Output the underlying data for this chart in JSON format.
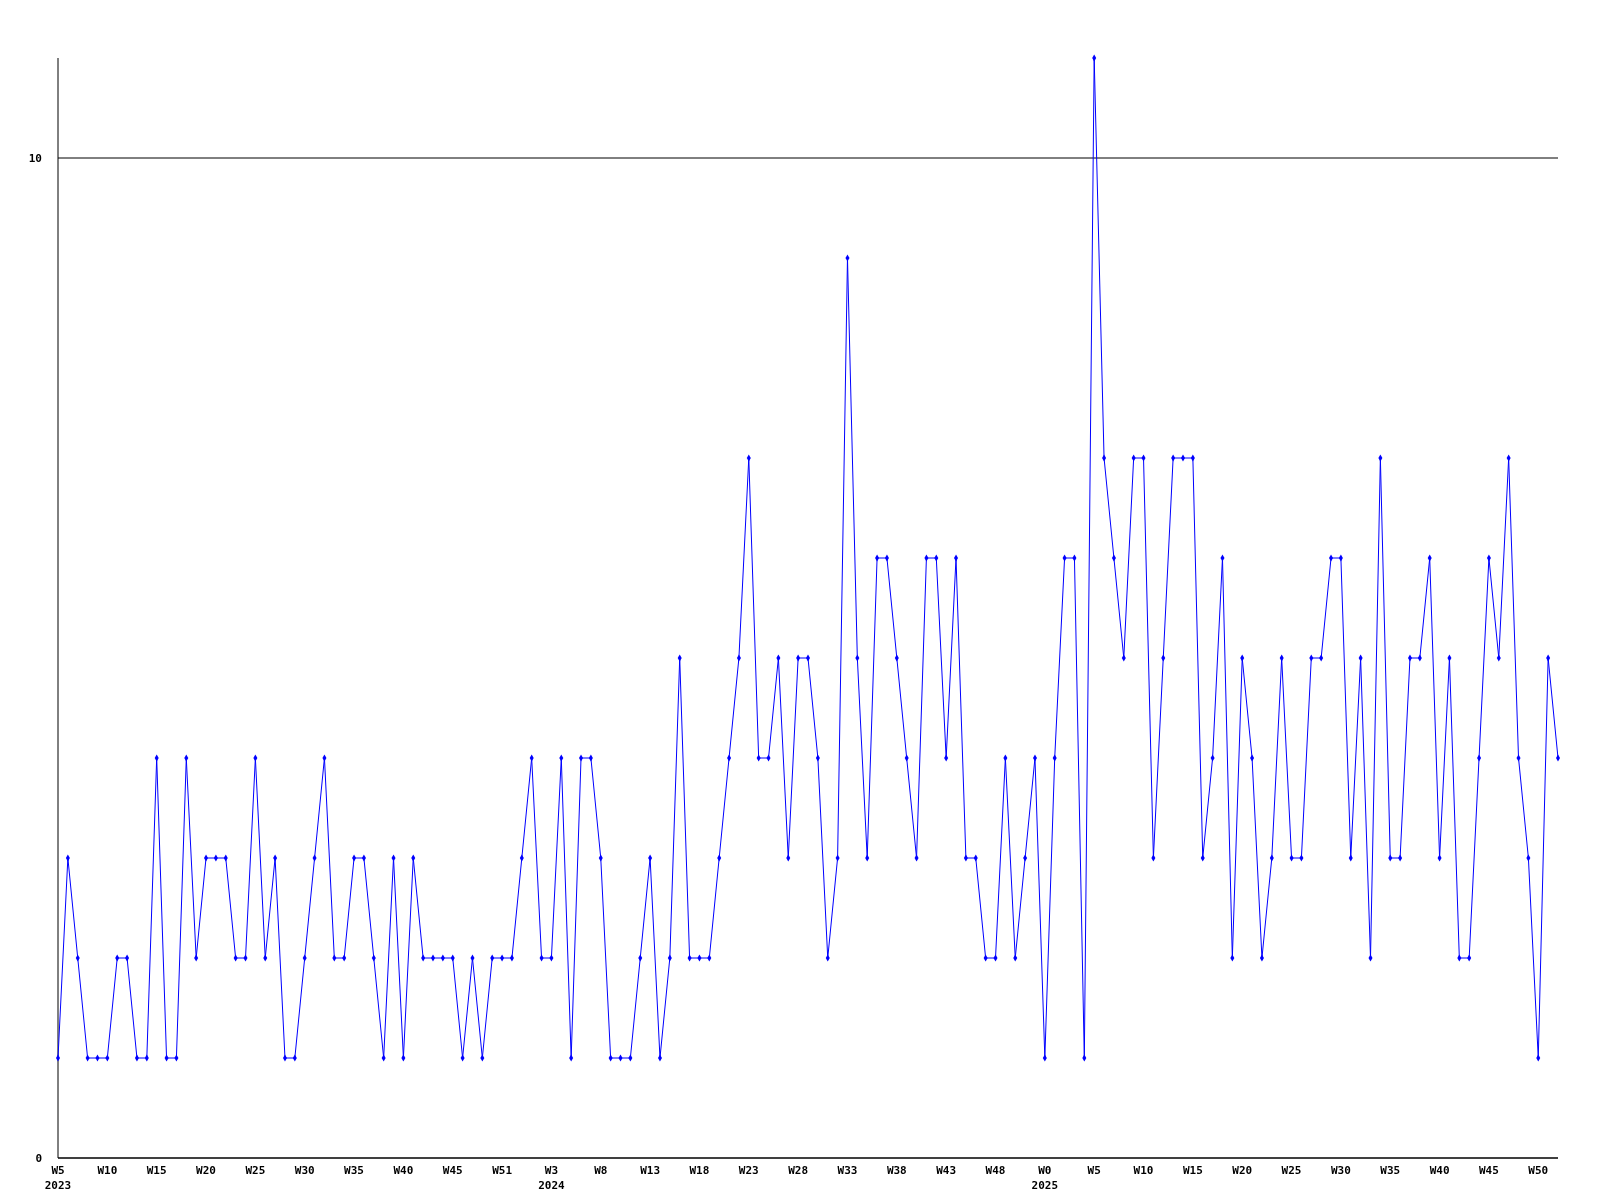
{
  "chart_data": {
    "type": "line",
    "categories": [
      "W5\n2023",
      null,
      null,
      null,
      null,
      "W10",
      null,
      null,
      null,
      null,
      "W15",
      null,
      null,
      null,
      null,
      "W20",
      null,
      null,
      null,
      null,
      "W25",
      null,
      null,
      null,
      null,
      "W30",
      null,
      null,
      null,
      null,
      "W35",
      null,
      null,
      null,
      null,
      "W40",
      null,
      null,
      null,
      null,
      "W45",
      null,
      null,
      null,
      null,
      "W51",
      null,
      null,
      null,
      null,
      "W3\n2024",
      null,
      null,
      null,
      null,
      "W8",
      null,
      null,
      null,
      null,
      "W13",
      null,
      null,
      null,
      null,
      "W18",
      null,
      null,
      null,
      null,
      "W23",
      null,
      null,
      null,
      null,
      "W28",
      null,
      null,
      null,
      null,
      "W33",
      null,
      null,
      null,
      null,
      "W38",
      null,
      null,
      null,
      null,
      "W43",
      null,
      null,
      null,
      null,
      "W48",
      null,
      null,
      null,
      null,
      "W0\n2025",
      null,
      null,
      null,
      null,
      "W5",
      null,
      null,
      null,
      null,
      "W10",
      null,
      null,
      null,
      null,
      "W15",
      null,
      null,
      null,
      null,
      "W20",
      null,
      null,
      null,
      null,
      "W25",
      null,
      null,
      null,
      null,
      "W30",
      null,
      null,
      null,
      null,
      "W35",
      null,
      null,
      null,
      null,
      "W40",
      null,
      null,
      null,
      null,
      "W45",
      null,
      null,
      null,
      null,
      "W50",
      null,
      null
    ],
    "series": [
      {
        "color": "#0000ff",
        "values": [
          1,
          3,
          2,
          1,
          1,
          1,
          2,
          2,
          1,
          1,
          4,
          1,
          1,
          4,
          2,
          3,
          3,
          3,
          2,
          2,
          4,
          2,
          3,
          1,
          1,
          2,
          3,
          4,
          2,
          2,
          3,
          3,
          2,
          1,
          3,
          1,
          3,
          2,
          2,
          2,
          2,
          1,
          2,
          1,
          2,
          2,
          2,
          3,
          4,
          2,
          2,
          4,
          1,
          4,
          4,
          3,
          1,
          1,
          1,
          2,
          3,
          1,
          2,
          5,
          2,
          2,
          2,
          3,
          4,
          5,
          7,
          4,
          4,
          5,
          3,
          5,
          5,
          4,
          2,
          3,
          9,
          5,
          3,
          6,
          6,
          5,
          4,
          3,
          6,
          6,
          4,
          6,
          3,
          3,
          2,
          2,
          4,
          2,
          3,
          4,
          1,
          4,
          6,
          6,
          1,
          11,
          7,
          6,
          5,
          7,
          7,
          3,
          5,
          7,
          7,
          7,
          3,
          4,
          6,
          2,
          5,
          4,
          2,
          3,
          5,
          3,
          3,
          5,
          5,
          6,
          6,
          3,
          5,
          2,
          7,
          3,
          3,
          5,
          5,
          6,
          3,
          5,
          2,
          2,
          4,
          6,
          5,
          7,
          4,
          3,
          1,
          5,
          4
        ]
      }
    ],
    "ylim": [
      0,
      11
    ],
    "yticks": [
      0,
      10
    ],
    "grid": "y",
    "marker": "diamond",
    "line_style": "solid"
  }
}
